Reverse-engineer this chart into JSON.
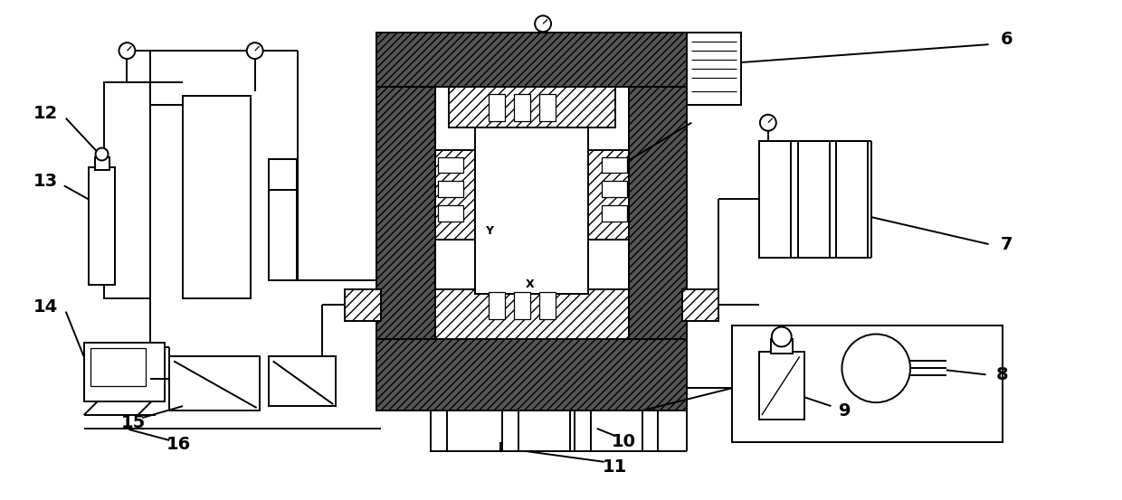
{
  "bg_color": "#ffffff",
  "label_fontsize": 14,
  "lw": 1.4
}
